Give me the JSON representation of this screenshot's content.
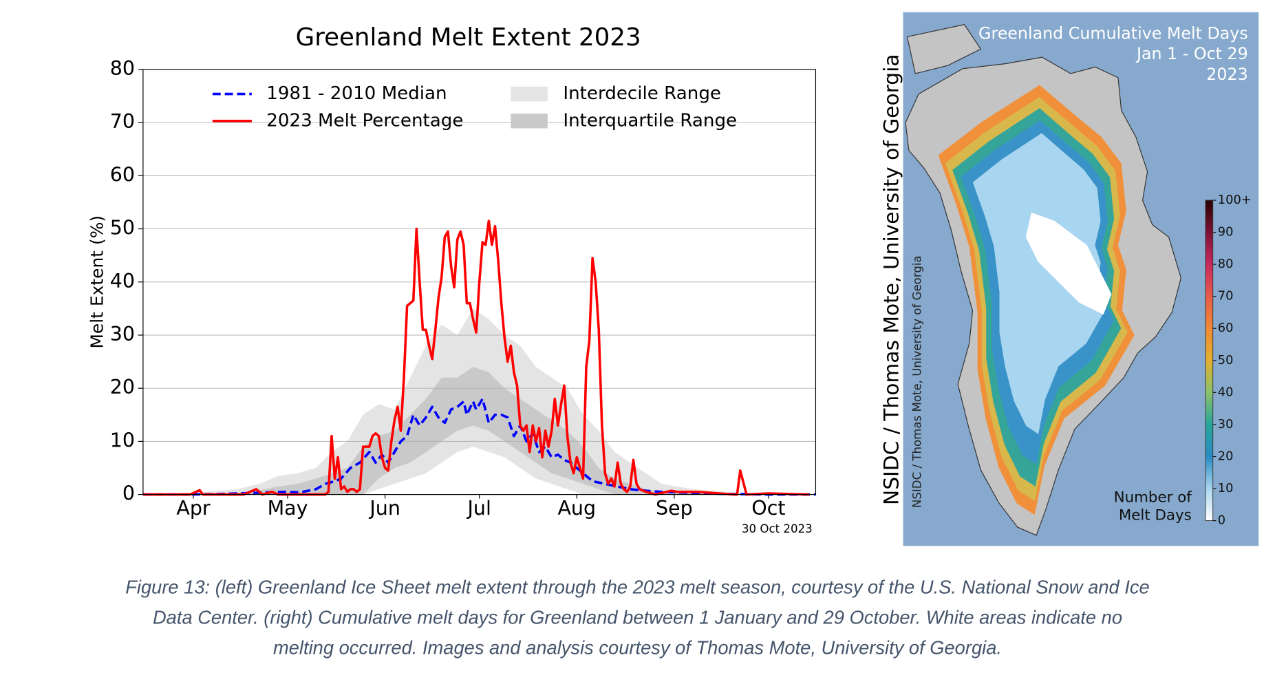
{
  "chart_data": [
    {
      "type": "line",
      "title": "Greenland Melt Extent 2023",
      "ylabel": "Melt Extent (%)",
      "annotation": "30 Oct 2023",
      "xlim": [
        75,
        289
      ],
      "xticks": [
        {
          "value": 91,
          "label": "Apr"
        },
        {
          "value": 121,
          "label": "May"
        },
        {
          "value": 152,
          "label": "Jun"
        },
        {
          "value": 182,
          "label": "Jul"
        },
        {
          "value": 213,
          "label": "Aug"
        },
        {
          "value": 244,
          "label": "Sep"
        },
        {
          "value": 274,
          "label": "Oct"
        }
      ],
      "ylim": [
        0,
        80
      ],
      "yticks": [
        0,
        10,
        20,
        30,
        40,
        50,
        60,
        70,
        80
      ],
      "grid": true,
      "legend": "upper center",
      "bands": [
        {
          "name": "Interdecile Range",
          "color": "#e4e4e4",
          "x": [
            75,
            85,
            95,
            105,
            112,
            118,
            124,
            130,
            135,
            140,
            145,
            150,
            155,
            160,
            165,
            170,
            175,
            180,
            185,
            190,
            195,
            200,
            205,
            210,
            215,
            220,
            225,
            230,
            235,
            240,
            250,
            260,
            270,
            280,
            289
          ],
          "low": [
            0,
            0,
            0,
            0,
            0,
            0,
            0,
            0,
            0,
            0,
            0,
            1,
            2,
            3,
            4,
            6,
            8,
            9,
            8,
            7,
            5,
            3,
            2,
            1,
            0,
            0,
            0,
            0,
            0,
            0,
            0,
            0,
            0,
            0,
            0
          ],
          "high": [
            0,
            0,
            0.5,
            1,
            2,
            3.5,
            4,
            5,
            8,
            10,
            15,
            17,
            16,
            22,
            28,
            32,
            30,
            35,
            33,
            30,
            28,
            24,
            22,
            20,
            15,
            12,
            8,
            6,
            4,
            2,
            1,
            0.5,
            0.2,
            0.1,
            0
          ]
        },
        {
          "name": "Interquartile Range",
          "color": "#c9c9c9",
          "x": [
            75,
            85,
            95,
            105,
            112,
            118,
            124,
            130,
            135,
            140,
            145,
            150,
            155,
            160,
            165,
            170,
            175,
            180,
            185,
            190,
            195,
            200,
            205,
            210,
            215,
            220,
            225,
            230,
            235,
            240,
            250,
            260,
            270,
            280,
            289
          ],
          "low": [
            0,
            0,
            0,
            0,
            0,
            0,
            0,
            0,
            0,
            0,
            0,
            3,
            5,
            6,
            8,
            10,
            12,
            13,
            12,
            10,
            8,
            6,
            4,
            3,
            2,
            1,
            0,
            0,
            0,
            0,
            0,
            0,
            0,
            0,
            0
          ],
          "high": [
            0,
            0,
            0,
            0.3,
            0.8,
            1.5,
            2,
            3,
            4,
            5,
            9,
            11,
            12,
            15,
            18,
            22,
            22,
            24,
            23,
            20,
            18,
            16,
            14,
            12,
            9,
            5,
            3,
            2,
            1,
            0.5,
            0.3,
            0.1,
            0,
            0,
            0
          ]
        }
      ],
      "series": [
        {
          "name": "1981 - 2010 Median",
          "color": "#0000ff",
          "linestyle": "dashed",
          "x": [
            75,
            90,
            100,
            110,
            120,
            125,
            130,
            133,
            136,
            138,
            141,
            144,
            147,
            149,
            151,
            153,
            155,
            157,
            159,
            161,
            163,
            165,
            167,
            169,
            171,
            173,
            175,
            177,
            178,
            180,
            181,
            183,
            185,
            187,
            189,
            191,
            193,
            195,
            197,
            199,
            201,
            203,
            205,
            207,
            209,
            211,
            213,
            215,
            218,
            222,
            226,
            230,
            235,
            240,
            250,
            260,
            275,
            289
          ],
          "values": [
            0,
            0,
            0.1,
            0.3,
            0.5,
            0.4,
            1,
            2,
            2.5,
            3,
            5,
            6,
            8,
            6,
            7.5,
            6,
            8,
            10,
            11,
            15,
            13,
            14.5,
            16.5,
            14.5,
            13.5,
            16,
            16.5,
            17.5,
            15,
            17.5,
            16,
            18,
            13.5,
            15,
            15,
            14.5,
            11,
            13,
            10,
            11.5,
            8,
            9,
            7,
            7.5,
            6.5,
            6,
            5,
            4,
            2.5,
            2,
            1.5,
            1,
            0.7,
            0.5,
            0.3,
            0.1,
            0,
            0
          ]
        },
        {
          "name": "2023 Melt Percentage",
          "color": "#ff0000",
          "linestyle": "solid",
          "x": [
            75,
            90,
            93,
            94,
            107,
            111,
            113,
            116,
            118,
            133,
            134,
            135,
            136,
            137,
            138,
            139,
            140,
            141,
            142,
            143,
            144,
            145,
            146,
            147,
            148,
            149,
            150,
            151,
            152,
            153,
            154,
            155,
            156,
            157,
            158,
            159,
            160,
            161,
            162,
            163,
            164,
            165,
            166,
            167,
            168,
            169,
            170,
            171,
            172,
            173,
            174,
            175,
            176,
            177,
            178,
            179,
            180,
            181,
            182,
            183,
            184,
            185,
            186,
            187,
            188,
            189,
            190,
            191,
            192,
            193,
            194,
            195,
            196,
            197,
            198,
            199,
            200,
            201,
            202,
            203,
            204,
            205,
            206,
            207,
            208,
            209,
            210,
            211,
            212,
            213,
            214,
            215,
            216,
            217,
            218,
            219,
            220,
            221,
            222,
            223,
            224,
            225,
            226,
            227,
            228,
            229,
            230,
            231,
            232,
            233,
            235,
            238,
            243,
            245,
            251,
            256,
            263,
            264,
            265,
            267,
            274,
            287
          ],
          "values": [
            0,
            0,
            0.8,
            0,
            0,
            1,
            0,
            0.5,
            0,
            0,
            0.5,
            11,
            3,
            7,
            1,
            1.5,
            0.5,
            1,
            1,
            0.5,
            1,
            9,
            9,
            9,
            11,
            11.5,
            11,
            7,
            5,
            4.5,
            10,
            14,
            16.5,
            12,
            22,
            35.5,
            36,
            36.5,
            50,
            40,
            31,
            31,
            28,
            25.5,
            31,
            37,
            41,
            48.5,
            49.5,
            43,
            39,
            48,
            49.5,
            47,
            36,
            36,
            33,
            30.5,
            40,
            47.5,
            47,
            51.5,
            47,
            50.5,
            44,
            36,
            29.5,
            25,
            28,
            23,
            20.5,
            13,
            12,
            13,
            8,
            13,
            10,
            12.5,
            7,
            12,
            9,
            12,
            18,
            13,
            17,
            20.5,
            11,
            6,
            4,
            7,
            5,
            3,
            24,
            29,
            44.5,
            40,
            31,
            13,
            4,
            2,
            3,
            1.5,
            6,
            2,
            1,
            0.5,
            1.5,
            6.5,
            2,
            1,
            0.5,
            0,
            0.7,
            0.5,
            0.5,
            0.3,
            0,
            0,
            4.5,
            0,
            0.2,
            0
          ]
        }
      ]
    },
    {
      "type": "map",
      "title_lines": [
        "Greenland Cumulative Melt Days",
        "Jan 1 - Oct 29",
        "2023"
      ],
      "colorbar_label_lines": [
        "Number of",
        "Melt Days"
      ],
      "clim": [
        0,
        100
      ],
      "cticks": [
        0,
        10,
        20,
        30,
        40,
        50,
        60,
        70,
        80,
        90,
        {
          "value": 100,
          "label": "100+"
        }
      ],
      "credit": "NSIDC / Thomas Mote, University of Georgia"
    }
  ],
  "caption": {
    "lines": [
      "Figure 13: (left) Greenland Ice Sheet melt extent through the 2023 melt season, courtesy of the U.S. National Snow and Ice",
      "Data Center. (right) Cumulative melt days for Greenland between 1 January and 29 October. White areas indicate no",
      "melting occurred. Images and analysis courtesy of Thomas Mote, University of Georgia."
    ]
  }
}
